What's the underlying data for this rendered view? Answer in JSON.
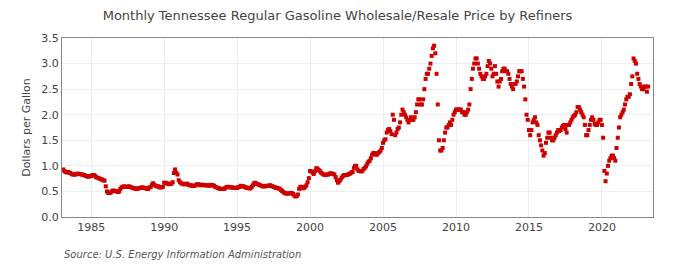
{
  "chart_data": {
    "type": "scatter",
    "title": "Monthly Tennessee Regular Gasoline Wholesale/Resale Price by Refiners",
    "y_label": "Dollars per Gallon",
    "annotations": [
      "Source: U.S. Energy Information Administration"
    ],
    "color": "#cc0000",
    "marker": "square",
    "grid": true,
    "xlim": [
      1983.0,
      2023.5
    ],
    "xticks": [
      1985,
      1990,
      1995,
      2000,
      2005,
      2010,
      2015,
      2020
    ],
    "ylim": [
      0.0,
      3.5
    ],
    "yticks": [
      {
        "value": 0.0,
        "label": "0.0"
      },
      0.5,
      {
        "value": 1.0,
        "label": "1.0"
      },
      1.5,
      {
        "value": 2.0,
        "label": "2.0"
      },
      2.5,
      {
        "value": 3.0,
        "label": "3.0"
      },
      3.5
    ],
    "x": [
      1983.083,
      1983.167,
      1983.25,
      1983.333,
      1983.417,
      1983.5,
      1983.583,
      1983.667,
      1983.75,
      1983.833,
      1983.917,
      1984.0,
      1984.083,
      1984.167,
      1984.25,
      1984.333,
      1984.417,
      1984.5,
      1984.583,
      1984.667,
      1984.75,
      1984.833,
      1984.917,
      1985.0,
      1985.083,
      1985.167,
      1985.25,
      1985.333,
      1985.417,
      1985.5,
      1985.583,
      1985.667,
      1985.75,
      1985.833,
      1985.917,
      1986.0,
      1986.083,
      1986.167,
      1986.25,
      1986.333,
      1986.417,
      1986.5,
      1986.583,
      1986.667,
      1986.75,
      1986.833,
      1986.917,
      1987.0,
      1987.083,
      1987.167,
      1987.25,
      1987.333,
      1987.417,
      1987.5,
      1987.583,
      1987.667,
      1987.75,
      1987.833,
      1987.917,
      1988.0,
      1988.083,
      1988.167,
      1988.25,
      1988.333,
      1988.417,
      1988.5,
      1988.583,
      1988.667,
      1988.75,
      1988.833,
      1988.917,
      1989.0,
      1989.083,
      1989.167,
      1989.25,
      1989.333,
      1989.417,
      1989.5,
      1989.583,
      1989.667,
      1989.75,
      1989.833,
      1989.917,
      1990.0,
      1990.083,
      1990.167,
      1990.25,
      1990.333,
      1990.417,
      1990.5,
      1990.583,
      1990.667,
      1990.75,
      1990.833,
      1990.917,
      1991.0,
      1991.083,
      1991.167,
      1991.25,
      1991.333,
      1991.417,
      1991.5,
      1991.583,
      1991.667,
      1991.75,
      1991.833,
      1991.917,
      1992.0,
      1992.083,
      1992.167,
      1992.25,
      1992.333,
      1992.417,
      1992.5,
      1992.583,
      1992.667,
      1992.75,
      1992.833,
      1992.917,
      1993.0,
      1993.083,
      1993.167,
      1993.25,
      1993.333,
      1993.417,
      1993.5,
      1993.583,
      1993.667,
      1993.75,
      1993.833,
      1993.917,
      1994.0,
      1994.083,
      1994.167,
      1994.25,
      1994.333,
      1994.417,
      1994.5,
      1994.583,
      1994.667,
      1994.75,
      1994.833,
      1994.917,
      1995.0,
      1995.083,
      1995.167,
      1995.25,
      1995.333,
      1995.417,
      1995.5,
      1995.583,
      1995.667,
      1995.75,
      1995.833,
      1995.917,
      1996.0,
      1996.083,
      1996.167,
      1996.25,
      1996.333,
      1996.417,
      1996.5,
      1996.583,
      1996.667,
      1996.75,
      1996.833,
      1996.917,
      1997.0,
      1997.083,
      1997.167,
      1997.25,
      1997.333,
      1997.417,
      1997.5,
      1997.583,
      1997.667,
      1997.75,
      1997.833,
      1997.917,
      1998.0,
      1998.083,
      1998.167,
      1998.25,
      1998.333,
      1998.417,
      1998.5,
      1998.583,
      1998.667,
      1998.75,
      1998.833,
      1998.917,
      1999.0,
      1999.083,
      1999.167,
      1999.25,
      1999.333,
      1999.417,
      1999.5,
      1999.583,
      1999.667,
      1999.75,
      1999.833,
      1999.917,
      2000.0,
      2000.083,
      2000.167,
      2000.25,
      2000.333,
      2000.417,
      2000.5,
      2000.583,
      2000.667,
      2000.75,
      2000.833,
      2000.917,
      2001.0,
      2001.083,
      2001.167,
      2001.25,
      2001.333,
      2001.417,
      2001.5,
      2001.583,
      2001.667,
      2001.75,
      2001.833,
      2001.917,
      2002.0,
      2002.083,
      2002.167,
      2002.25,
      2002.333,
      2002.417,
      2002.5,
      2002.583,
      2002.667,
      2002.75,
      2002.833,
      2002.917,
      2003.0,
      2003.083,
      2003.167,
      2003.25,
      2003.333,
      2003.417,
      2003.5,
      2003.583,
      2003.667,
      2003.75,
      2003.833,
      2003.917,
      2004.0,
      2004.083,
      2004.167,
      2004.25,
      2004.333,
      2004.417,
      2004.5,
      2004.583,
      2004.667,
      2004.75,
      2004.833,
      2004.917,
      2005.0,
      2005.083,
      2005.167,
      2005.25,
      2005.333,
      2005.417,
      2005.5,
      2005.583,
      2005.667,
      2005.75,
      2005.833,
      2005.917,
      2006.0,
      2006.083,
      2006.167,
      2006.25,
      2006.333,
      2006.417,
      2006.5,
      2006.583,
      2006.667,
      2006.75,
      2006.833,
      2006.917,
      2007.0,
      2007.083,
      2007.167,
      2007.25,
      2007.333,
      2007.417,
      2007.5,
      2007.583,
      2007.667,
      2007.75,
      2007.833,
      2007.917,
      2008.0,
      2008.083,
      2008.167,
      2008.25,
      2008.333,
      2008.417,
      2008.5,
      2008.583,
      2008.667,
      2008.75,
      2008.833,
      2008.917,
      2009.0,
      2009.083,
      2009.167,
      2009.25,
      2009.333,
      2009.417,
      2009.5,
      2009.583,
      2009.667,
      2009.75,
      2009.833,
      2009.917,
      2010.0,
      2010.083,
      2010.167,
      2010.25,
      2010.333,
      2010.417,
      2010.5,
      2010.583,
      2010.667,
      2010.75,
      2010.833,
      2010.917,
      2011.0,
      2011.083,
      2011.167,
      2011.25,
      2011.333,
      2011.417,
      2011.5,
      2011.583,
      2011.667,
      2011.75,
      2011.833,
      2011.917,
      2012.0,
      2012.083,
      2012.167,
      2012.25,
      2012.333,
      2012.417,
      2012.5,
      2012.583,
      2012.667,
      2012.75,
      2012.833,
      2012.917,
      2013.0,
      2013.083,
      2013.167,
      2013.25,
      2013.333,
      2013.417,
      2013.5,
      2013.583,
      2013.667,
      2013.75,
      2013.833,
      2013.917,
      2014.0,
      2014.083,
      2014.167,
      2014.25,
      2014.333,
      2014.417,
      2014.5,
      2014.583,
      2014.667,
      2014.75,
      2014.833,
      2014.917,
      2015.0,
      2015.083,
      2015.167,
      2015.25,
      2015.333,
      2015.417,
      2015.5,
      2015.583,
      2015.667,
      2015.75,
      2015.833,
      2015.917,
      2016.0,
      2016.083,
      2016.167,
      2016.25,
      2016.333,
      2016.417,
      2016.5,
      2016.583,
      2016.667,
      2016.75,
      2016.833,
      2016.917,
      2017.0,
      2017.083,
      2017.167,
      2017.25,
      2017.333,
      2017.417,
      2017.5,
      2017.583,
      2017.667,
      2017.75,
      2017.833,
      2017.917,
      2018.0,
      2018.083,
      2018.167,
      2018.25,
      2018.333,
      2018.417,
      2018.5,
      2018.583,
      2018.667,
      2018.75,
      2018.833,
      2018.917,
      2019.0,
      2019.083,
      2019.167,
      2019.25,
      2019.333,
      2019.417,
      2019.5,
      2019.583,
      2019.667,
      2019.75,
      2019.833,
      2019.917,
      2020.0,
      2020.083,
      2020.167,
      2020.25,
      2020.333,
      2020.417,
      2020.5,
      2020.583,
      2020.667,
      2020.75,
      2020.833,
      2020.917,
      2021.0,
      2021.083,
      2021.167,
      2021.25,
      2021.333,
      2021.417,
      2021.5,
      2021.583,
      2021.667,
      2021.75,
      2021.833,
      2021.917,
      2022.0,
      2022.083,
      2022.167,
      2022.25,
      2022.333,
      2022.417,
      2022.5,
      2022.583,
      2022.667,
      2022.75,
      2022.833,
      2022.917,
      2023.0,
      2023.083,
      2023.167
    ],
    "values": [
      0.93,
      0.9,
      0.88,
      0.87,
      0.88,
      0.87,
      0.86,
      0.84,
      0.83,
      0.83,
      0.83,
      0.84,
      0.85,
      0.84,
      0.84,
      0.83,
      0.83,
      0.82,
      0.81,
      0.8,
      0.79,
      0.79,
      0.8,
      0.8,
      0.82,
      0.82,
      0.81,
      0.78,
      0.77,
      0.76,
      0.75,
      0.74,
      0.73,
      0.72,
      0.71,
      0.6,
      0.5,
      0.47,
      0.47,
      0.48,
      0.5,
      0.52,
      0.51,
      0.51,
      0.5,
      0.49,
      0.5,
      0.55,
      0.58,
      0.59,
      0.6,
      0.59,
      0.59,
      0.59,
      0.6,
      0.59,
      0.58,
      0.57,
      0.56,
      0.56,
      0.55,
      0.55,
      0.56,
      0.57,
      0.57,
      0.58,
      0.57,
      0.57,
      0.56,
      0.55,
      0.55,
      0.58,
      0.59,
      0.63,
      0.66,
      0.63,
      0.61,
      0.6,
      0.6,
      0.58,
      0.58,
      0.58,
      0.59,
      0.67,
      0.67,
      0.66,
      0.65,
      0.64,
      0.65,
      0.65,
      0.68,
      0.86,
      0.93,
      0.86,
      0.83,
      0.72,
      0.68,
      0.66,
      0.65,
      0.64,
      0.64,
      0.65,
      0.65,
      0.63,
      0.62,
      0.62,
      0.61,
      0.61,
      0.61,
      0.62,
      0.64,
      0.64,
      0.63,
      0.62,
      0.63,
      0.63,
      0.62,
      0.62,
      0.62,
      0.62,
      0.61,
      0.62,
      0.63,
      0.62,
      0.61,
      0.59,
      0.58,
      0.57,
      0.56,
      0.55,
      0.55,
      0.55,
      0.55,
      0.56,
      0.58,
      0.59,
      0.59,
      0.58,
      0.58,
      0.58,
      0.57,
      0.57,
      0.57,
      0.57,
      0.58,
      0.59,
      0.61,
      0.6,
      0.6,
      0.59,
      0.58,
      0.57,
      0.57,
      0.56,
      0.56,
      0.59,
      0.62,
      0.66,
      0.67,
      0.65,
      0.64,
      0.63,
      0.62,
      0.61,
      0.6,
      0.6,
      0.6,
      0.61,
      0.61,
      0.61,
      0.62,
      0.61,
      0.6,
      0.59,
      0.58,
      0.57,
      0.57,
      0.56,
      0.55,
      0.53,
      0.51,
      0.49,
      0.47,
      0.46,
      0.46,
      0.46,
      0.46,
      0.47,
      0.47,
      0.45,
      0.42,
      0.4,
      0.41,
      0.44,
      0.55,
      0.59,
      0.59,
      0.56,
      0.57,
      0.59,
      0.62,
      0.68,
      0.76,
      0.9,
      0.89,
      0.87,
      0.84,
      0.89,
      0.95,
      0.95,
      0.92,
      0.9,
      0.87,
      0.85,
      0.83,
      0.83,
      0.82,
      0.83,
      0.83,
      0.85,
      0.85,
      0.85,
      0.84,
      0.83,
      0.78,
      0.72,
      0.67,
      0.7,
      0.73,
      0.77,
      0.8,
      0.82,
      0.82,
      0.82,
      0.83,
      0.84,
      0.85,
      0.87,
      0.88,
      0.96,
      1.0,
      1.0,
      0.93,
      0.9,
      0.9,
      0.89,
      0.9,
      0.94,
      0.96,
      0.99,
      1.04,
      1.08,
      1.1,
      1.15,
      1.22,
      1.25,
      1.25,
      1.22,
      1.22,
      1.25,
      1.27,
      1.3,
      1.35,
      1.45,
      1.5,
      1.52,
      1.65,
      1.7,
      1.72,
      1.68,
      1.62,
      2.0,
      1.9,
      1.6,
      1.65,
      1.72,
      1.75,
      1.85,
      2.0,
      2.1,
      2.05,
      2.0,
      1.95,
      1.9,
      1.85,
      1.9,
      1.95,
      1.9,
      1.9,
      1.95,
      2.05,
      2.2,
      2.3,
      2.3,
      2.2,
      2.2,
      2.3,
      2.5,
      2.7,
      2.8,
      2.8,
      2.9,
      3.0,
      3.15,
      3.3,
      3.35,
      3.2,
      2.8,
      2.2,
      1.5,
      1.3,
      1.3,
      1.35,
      1.5,
      1.65,
      1.75,
      1.75,
      1.8,
      1.85,
      1.8,
      1.9,
      2.0,
      2.05,
      2.1,
      2.1,
      2.1,
      2.1,
      2.1,
      2.05,
      2.05,
      2.0,
      2.0,
      2.05,
      2.1,
      2.2,
      2.5,
      2.7,
      2.9,
      3.0,
      3.1,
      3.1,
      3.0,
      2.9,
      2.8,
      2.75,
      2.7,
      2.7,
      2.75,
      2.8,
      2.95,
      3.05,
      3.0,
      2.9,
      2.75,
      2.8,
      2.95,
      2.8,
      2.65,
      2.55,
      2.65,
      2.7,
      2.85,
      2.9,
      2.9,
      2.85,
      2.85,
      2.8,
      2.7,
      2.6,
      2.55,
      2.5,
      2.6,
      2.6,
      2.65,
      2.75,
      2.85,
      2.85,
      2.85,
      2.7,
      2.55,
      2.3,
      2.0,
      1.9,
      1.7,
      1.6,
      1.7,
      1.85,
      1.9,
      1.95,
      1.85,
      1.8,
      1.6,
      1.5,
      1.4,
      1.3,
      1.2,
      1.25,
      1.45,
      1.55,
      1.65,
      1.65,
      1.55,
      1.5,
      1.5,
      1.55,
      1.6,
      1.65,
      1.7,
      1.68,
      1.7,
      1.75,
      1.78,
      1.8,
      1.72,
      1.65,
      1.8,
      1.8,
      1.85,
      1.9,
      1.95,
      1.98,
      2.0,
      2.05,
      2.15,
      2.15,
      2.1,
      2.05,
      2.0,
      1.95,
      1.8,
      1.6,
      1.6,
      1.7,
      1.8,
      1.9,
      1.95,
      1.9,
      1.82,
      1.8,
      1.8,
      1.85,
      1.9,
      1.9,
      1.8,
      1.55,
      0.9,
      0.7,
      0.85,
      1.0,
      1.1,
      1.15,
      1.2,
      1.2,
      1.15,
      1.1,
      1.35,
      1.55,
      1.75,
      1.95,
      2.0,
      2.05,
      2.1,
      2.2,
      2.3,
      2.35,
      2.35,
      2.4,
      2.6,
      2.75,
      3.1,
      3.05,
      3.0,
      2.8,
      2.7,
      2.6,
      2.55,
      2.5,
      2.5,
      2.55,
      2.55,
      2.45,
      2.55
    ]
  }
}
